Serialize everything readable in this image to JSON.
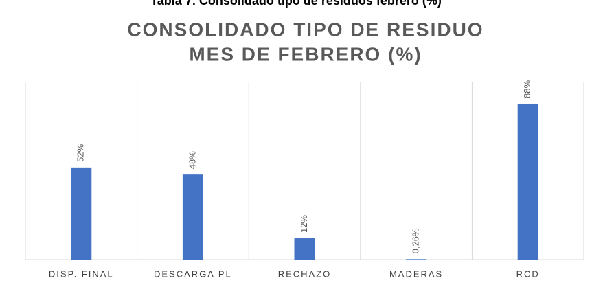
{
  "caption": "Tabla 7. Consolidado tipo de residuos febrero (%)",
  "chart_data": {
    "type": "bar",
    "title": [
      "CONSOLIDADO TIPO DE RESIDUO",
      "MES DE FEBRERO (%)"
    ],
    "categories": [
      "DISP. FINAL",
      "DESCARGA PL",
      "RECHAZO",
      "MADERAS",
      "RCD"
    ],
    "values": [
      52,
      48,
      12,
      0.26,
      88
    ],
    "value_labels": [
      "52%",
      "48%",
      "12%",
      "0,26%",
      "88%"
    ],
    "color": "#4472c4",
    "ylim": [
      0,
      100
    ]
  }
}
